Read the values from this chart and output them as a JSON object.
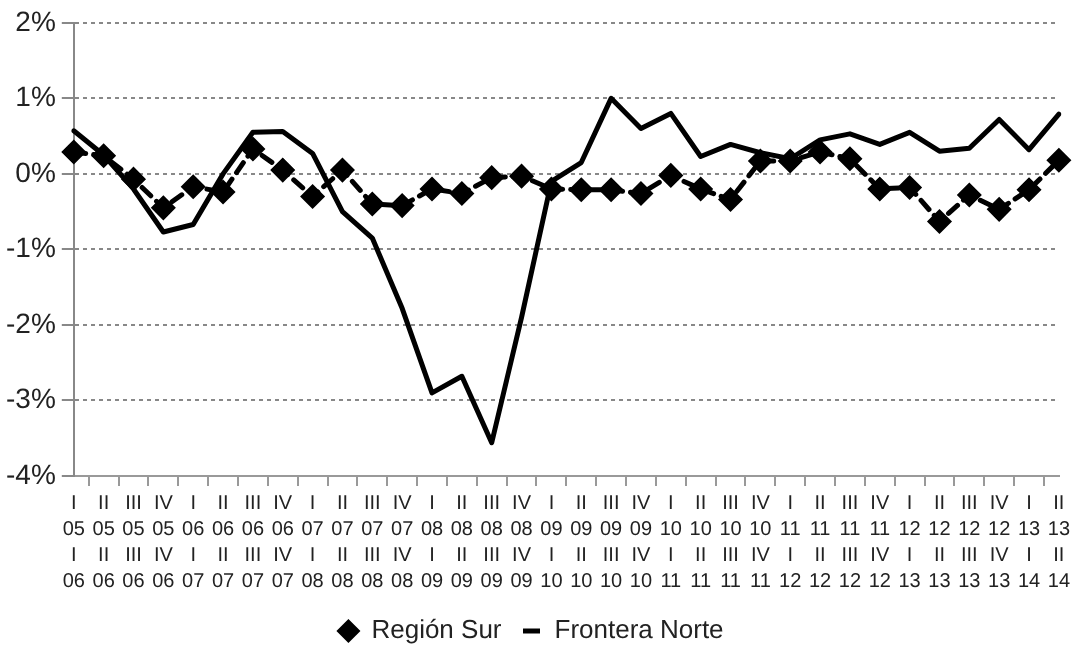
{
  "chart_data": {
    "type": "line",
    "categories": [
      "I\n05\nI\n06",
      "II\n05\nII\n06",
      "III\n05\nIII\n06",
      "IV\n05\nIV\n06",
      "I\n06\nI\n07",
      "II\n06\nII\n07",
      "III\n06\nIII\n07",
      "IV\n06\nIV\n07",
      "I\n07\nI\n08",
      "II\n07\nII\n08",
      "III\n07\nIII\n08",
      "IV\n07\nIV\n08",
      "I\n08\nI\n09",
      "II\n08\nII\n09",
      "III\n08\nIII\n09",
      "IV\n08\nIV\n09",
      "I\n09\nI\n10",
      "II\n09\nII\n10",
      "III\n09\nIII\n10",
      "IV\n09\nIV\n10",
      "I\n10\nI\n11",
      "II\n10\nII\n11",
      "III\n10\nIII\n11",
      "IV\n10\nIV\n11",
      "I\n11\nI\n12",
      "II\n11\nII\n12",
      "III\n11\nIII\n12",
      "IV\n11\nIV\n12",
      "I\n12\nI\n13",
      "II\n12\nII\n13",
      "III\n12\nIII\n13",
      "IV\n12\nIV\n13",
      "I\n13\nI\n14",
      "II\n13\nII\n14"
    ],
    "series": [
      {
        "name": "Región Sur",
        "color": "#000000",
        "marker": "diamond",
        "line_style": "dashed",
        "values": [
          0.29,
          0.24,
          -0.07,
          -0.45,
          -0.17,
          -0.24,
          0.33,
          0.05,
          -0.3,
          0.05,
          -0.4,
          -0.42,
          -0.2,
          -0.26,
          -0.05,
          -0.03,
          -0.2,
          -0.21,
          -0.21,
          -0.26,
          -0.02,
          -0.2,
          -0.34,
          0.17,
          0.17,
          0.29,
          0.2,
          -0.2,
          -0.18,
          -0.63,
          -0.28,
          -0.47,
          -0.21,
          0.18
        ]
      },
      {
        "name": "Frontera Norte",
        "color": "#000000",
        "marker": "none",
        "line_style": "solid",
        "values": [
          0.57,
          0.25,
          -0.2,
          -0.77,
          -0.67,
          0,
          0.55,
          0.56,
          0.27,
          -0.5,
          -0.85,
          -1.78,
          -2.9,
          -2.68,
          -3.56,
          -1.9,
          -0.1,
          0.15,
          1,
          0.6,
          0.8,
          0.23,
          0.39,
          0.28,
          0.2,
          0.45,
          0.53,
          0.39,
          0.55,
          0.3,
          0.34,
          0.72,
          0.32,
          0.79
        ]
      }
    ],
    "ylim": [
      -4,
      2
    ],
    "yticks": [
      {
        "value": -4,
        "label": "-4%"
      },
      {
        "value": -3,
        "label": "-3%"
      },
      {
        "value": -2,
        "label": "-2%"
      },
      {
        "value": -1,
        "label": "-1%"
      },
      {
        "value": 0,
        "label": "0%"
      },
      {
        "value": 1,
        "label": "1%"
      },
      {
        "value": 2,
        "label": "2%"
      }
    ],
    "grid": "y",
    "legend": "bottom"
  }
}
